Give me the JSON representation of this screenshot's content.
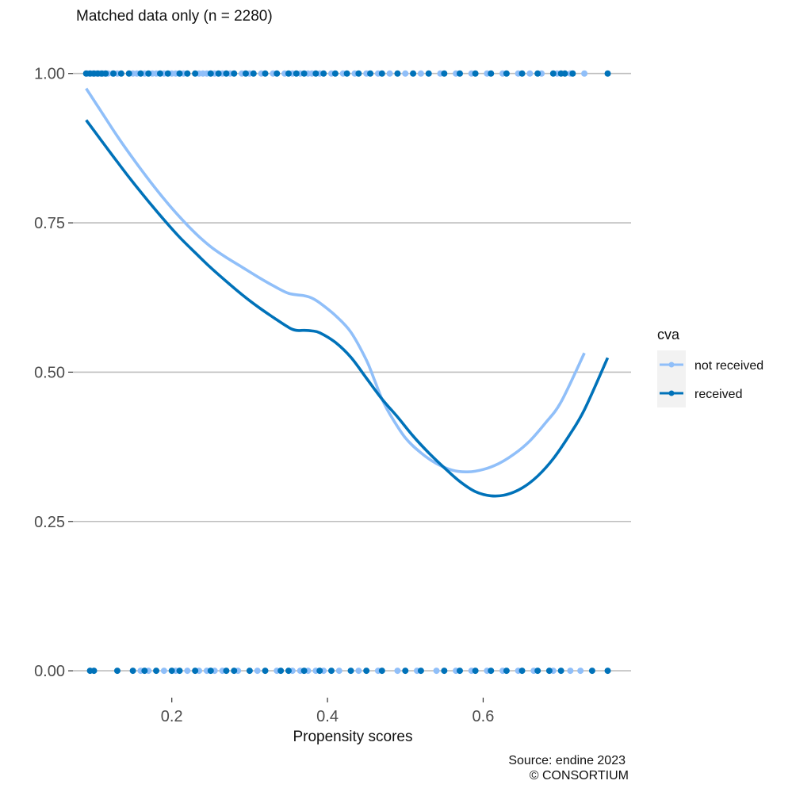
{
  "chart_data": {
    "type": "scatter",
    "title": "Matched data only (n = 2280)",
    "xlabel": "Propensity scores",
    "ylabel": "",
    "xlim": [
      0.073,
      0.79
    ],
    "ylim": [
      -0.045,
      1.07
    ],
    "x_ticks": [
      {
        "value": 0.2,
        "label": "0.2"
      },
      {
        "value": 0.4,
        "label": "0.4"
      },
      {
        "value": 0.6,
        "label": "0.6"
      }
    ],
    "y_ticks": [
      {
        "value": 0.0,
        "label": "0.00"
      },
      {
        "value": 0.25,
        "label": "0.25"
      },
      {
        "value": 0.5,
        "label": "0.50"
      },
      {
        "value": 0.75,
        "label": "0.75"
      },
      {
        "value": 1.0,
        "label": "1.00"
      }
    ],
    "grid": "horizontal-major",
    "legend": {
      "title": "cva",
      "position": "right",
      "entries": [
        {
          "label": "not received",
          "color": "#90bff9"
        },
        {
          "label": "received",
          "color": "#0072b9"
        }
      ]
    },
    "series": [
      {
        "name": "not received",
        "color": "#90bff9",
        "points_y1": [
          0.092,
          0.098,
          0.103,
          0.108,
          0.112,
          0.118,
          0.124,
          0.13,
          0.15,
          0.155,
          0.165,
          0.175,
          0.18,
          0.19,
          0.2,
          0.205,
          0.215,
          0.235,
          0.24,
          0.245,
          0.255,
          0.265,
          0.275,
          0.29,
          0.3,
          0.315,
          0.33,
          0.345,
          0.355,
          0.365,
          0.375,
          0.38,
          0.39,
          0.405,
          0.42,
          0.435,
          0.45,
          0.465,
          0.48,
          0.5,
          0.52,
          0.545,
          0.565,
          0.585,
          0.605,
          0.625,
          0.645,
          0.66,
          0.675,
          0.695,
          0.712,
          0.73
        ],
        "points_y0": [
          0.16,
          0.17,
          0.19,
          0.205,
          0.22,
          0.235,
          0.245,
          0.255,
          0.265,
          0.285,
          0.31,
          0.335,
          0.355,
          0.365,
          0.375,
          0.385,
          0.395,
          0.415,
          0.44,
          0.465,
          0.49,
          0.515,
          0.54,
          0.565,
          0.585,
          0.605,
          0.625,
          0.645,
          0.665,
          0.69,
          0.712,
          0.725
        ],
        "smooth": {
          "x": [
            0.09,
            0.11,
            0.13,
            0.15,
            0.17,
            0.19,
            0.21,
            0.23,
            0.25,
            0.27,
            0.29,
            0.31,
            0.33,
            0.35,
            0.37,
            0.38,
            0.39,
            0.41,
            0.43,
            0.45,
            0.46,
            0.47,
            0.48,
            0.5,
            0.52,
            0.54,
            0.56,
            0.58,
            0.6,
            0.62,
            0.64,
            0.66,
            0.68,
            0.7,
            0.73
          ],
          "y": [
            0.975,
            0.935,
            0.895,
            0.858,
            0.823,
            0.79,
            0.76,
            0.733,
            0.71,
            0.692,
            0.676,
            0.66,
            0.645,
            0.632,
            0.628,
            0.624,
            0.616,
            0.595,
            0.567,
            0.52,
            0.488,
            0.455,
            0.43,
            0.39,
            0.365,
            0.347,
            0.336,
            0.333,
            0.337,
            0.347,
            0.363,
            0.385,
            0.415,
            0.45,
            0.532
          ]
        }
      },
      {
        "name": "received",
        "color": "#0072b9",
        "points_y1": [
          0.09,
          0.095,
          0.1,
          0.105,
          0.11,
          0.115,
          0.125,
          0.135,
          0.145,
          0.16,
          0.17,
          0.185,
          0.195,
          0.21,
          0.22,
          0.23,
          0.25,
          0.26,
          0.27,
          0.28,
          0.295,
          0.305,
          0.32,
          0.335,
          0.35,
          0.36,
          0.37,
          0.385,
          0.395,
          0.41,
          0.425,
          0.44,
          0.455,
          0.47,
          0.49,
          0.51,
          0.53,
          0.55,
          0.57,
          0.59,
          0.61,
          0.63,
          0.65,
          0.67,
          0.69,
          0.7,
          0.705,
          0.715,
          0.76
        ],
        "points_y0": [
          0.095,
          0.1,
          0.13,
          0.15,
          0.165,
          0.18,
          0.2,
          0.21,
          0.23,
          0.25,
          0.27,
          0.28,
          0.3,
          0.32,
          0.34,
          0.35,
          0.37,
          0.39,
          0.405,
          0.43,
          0.45,
          0.47,
          0.5,
          0.52,
          0.55,
          0.57,
          0.59,
          0.61,
          0.63,
          0.65,
          0.67,
          0.685,
          0.7,
          0.74,
          0.76
        ],
        "smooth": {
          "x": [
            0.09,
            0.11,
            0.13,
            0.15,
            0.17,
            0.19,
            0.21,
            0.23,
            0.25,
            0.27,
            0.29,
            0.31,
            0.33,
            0.35,
            0.36,
            0.37,
            0.38,
            0.39,
            0.41,
            0.43,
            0.45,
            0.47,
            0.49,
            0.51,
            0.53,
            0.55,
            0.57,
            0.59,
            0.61,
            0.63,
            0.65,
            0.67,
            0.69,
            0.71,
            0.73,
            0.76
          ],
          "y": [
            0.922,
            0.887,
            0.852,
            0.818,
            0.786,
            0.755,
            0.726,
            0.7,
            0.675,
            0.652,
            0.63,
            0.61,
            0.592,
            0.575,
            0.57,
            0.57,
            0.569,
            0.566,
            0.55,
            0.525,
            0.49,
            0.455,
            0.425,
            0.393,
            0.365,
            0.34,
            0.317,
            0.3,
            0.293,
            0.295,
            0.306,
            0.326,
            0.355,
            0.393,
            0.437,
            0.524
          ]
        }
      }
    ]
  },
  "caption": {
    "line1": "Source: endine 2023",
    "line2": "© CONSORTIUM"
  }
}
